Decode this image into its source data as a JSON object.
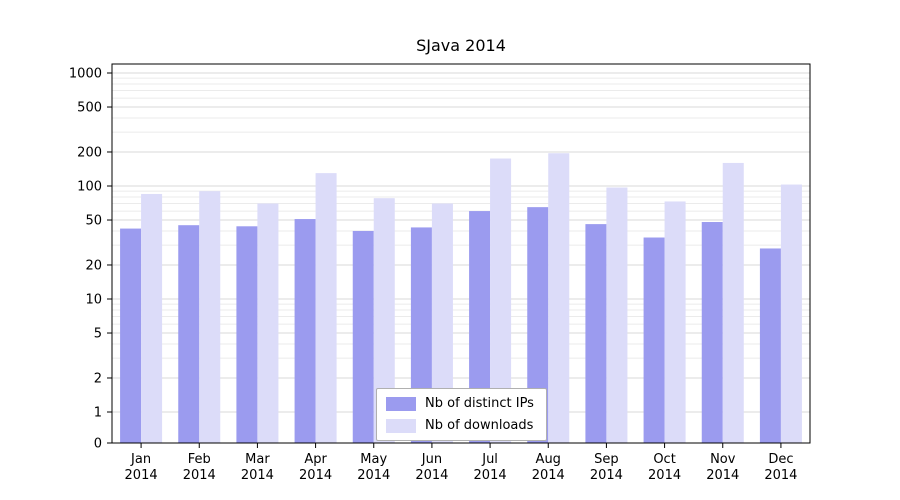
{
  "chart_data": {
    "type": "bar",
    "title": "SJava 2014",
    "categories": [
      "Jan",
      "Feb",
      "Mar",
      "Apr",
      "May",
      "Jun",
      "Jul",
      "Aug",
      "Sep",
      "Oct",
      "Nov",
      "Dec"
    ],
    "year_label": "2014",
    "series": [
      {
        "name": "Nb of distinct IPs",
        "color": "#9b9bef",
        "values": [
          42,
          45,
          44,
          51,
          40,
          43,
          60,
          65,
          46,
          35,
          48,
          28
        ]
      },
      {
        "name": "Nb of downloads",
        "color": "#dcdcf9",
        "values": [
          85,
          90,
          70,
          130,
          78,
          70,
          175,
          195,
          97,
          73,
          160,
          103
        ]
      }
    ],
    "yticks": [
      0,
      1,
      2,
      5,
      10,
      20,
      50,
      100,
      200,
      500,
      1000
    ],
    "yscale": "symlog",
    "ylim": [
      0,
      1000
    ],
    "grid": true,
    "legend_position": "lower center",
    "grid_color_major": "#d9d9d9",
    "grid_color_minor": "#ebebeb",
    "axis_color": "#000000"
  }
}
